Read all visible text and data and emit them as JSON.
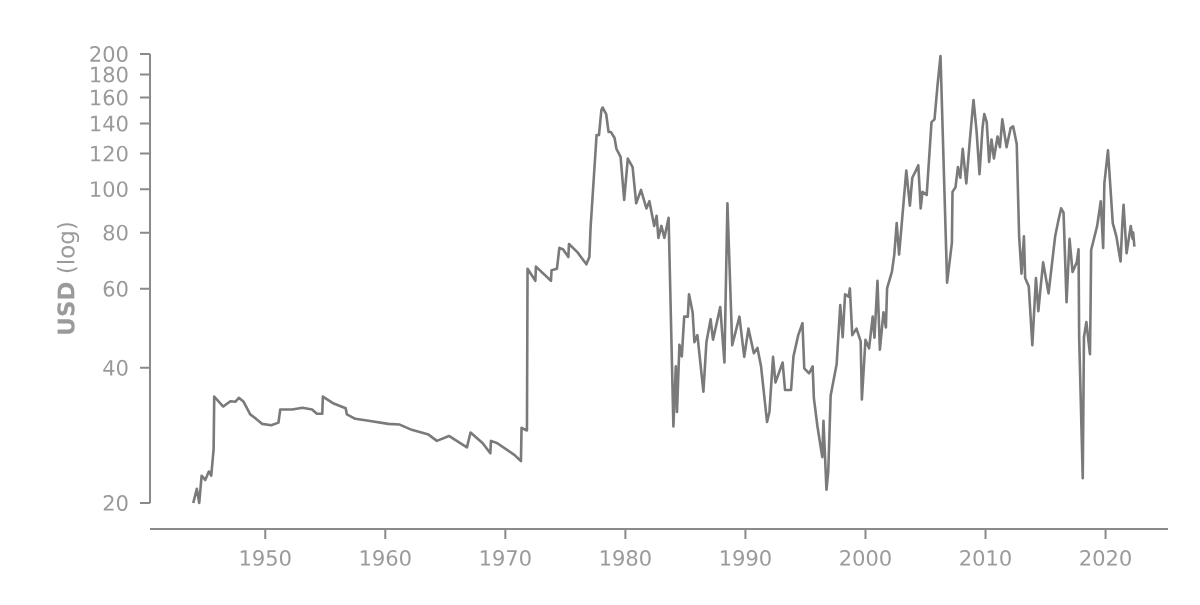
{
  "chart_data": {
    "type": "line",
    "ylabel": "**USD** (log)",
    "log": "y",
    "color": "#7a7a7a",
    "xlim": [
      1940.4,
      2025.2
    ],
    "ylim": [
      20,
      200
    ],
    "xticks": [
      1950,
      1960,
      1970,
      1980,
      1990,
      2000,
      2010,
      2020
    ],
    "yticks": [
      20,
      40,
      60,
      80,
      100,
      120,
      140,
      160,
      180,
      200
    ],
    "x": [
      1944.0,
      1944.3,
      1944.5,
      1944.7,
      1945.0,
      1945.3,
      1945.5,
      1945.7,
      1945.75,
      1946.5,
      1947.1,
      1947.5,
      1947.8,
      1948.2,
      1948.75,
      1949.1,
      1949.75,
      1950.5,
      1951.1,
      1951.25,
      1952.25,
      1953.1,
      1953.9,
      1954.3,
      1954.75,
      1954.8,
      1955.7,
      1956.7,
      1956.8,
      1957.5,
      1958.6,
      1960.25,
      1961.2,
      1962.2,
      1963.6,
      1964.3,
      1965.3,
      1966.8,
      1967.1,
      1968.1,
      1968.75,
      1968.8,
      1969.3,
      1970.75,
      1971.3,
      1971.35,
      1971.8,
      1971.85,
      1972.5,
      1972.55,
      1973.8,
      1973.85,
      1974.3,
      1974.5,
      1974.8,
      1975.25,
      1975.3,
      1976.0,
      1976.75,
      1977.0,
      1977.1,
      1977.6,
      1977.8,
      1978.0,
      1978.1,
      1978.4,
      1978.6,
      1978.8,
      1979.1,
      1979.25,
      1979.6,
      1979.9,
      1980.2,
      1980.6,
      1980.9,
      1981.3,
      1981.75,
      1982.0,
      1982.4,
      1982.6,
      1982.75,
      1983.0,
      1983.25,
      1983.6,
      1984.0,
      1984.2,
      1984.3,
      1984.5,
      1984.7,
      1984.9,
      1985.2,
      1985.3,
      1985.6,
      1985.75,
      1986.0,
      1986.5,
      1986.75,
      1987.1,
      1987.3,
      1987.9,
      1988.25,
      1988.5,
      1988.9,
      1989.5,
      1989.9,
      1990.25,
      1990.7,
      1991.0,
      1991.3,
      1991.8,
      1992.0,
      1992.3,
      1992.5,
      1993.1,
      1993.3,
      1993.8,
      1994.0,
      1994.4,
      1994.75,
      1994.9,
      1995.3,
      1995.6,
      1995.7,
      1996.0,
      1996.4,
      1996.5,
      1996.75,
      1996.9,
      1997.1,
      1997.6,
      1997.9,
      1998.1,
      1998.3,
      1998.6,
      1998.7,
      1998.9,
      1999.25,
      1999.6,
      1999.7,
      2000.0,
      2000.3,
      2000.6,
      2000.75,
      2001.0,
      2001.2,
      2001.5,
      2001.7,
      2001.8,
      2002.2,
      2002.4,
      2002.6,
      2002.8,
      2003.1,
      2003.4,
      2003.7,
      2003.9,
      2004.2,
      2004.4,
      2004.6,
      2004.75,
      2005.1,
      2005.3,
      2005.5,
      2005.75,
      2006.0,
      2006.25,
      2006.8,
      2007.2,
      2007.25,
      2007.5,
      2007.7,
      2007.9,
      2008.1,
      2008.4,
      2008.7,
      2009.0,
      2009.25,
      2009.5,
      2009.75,
      2009.9,
      2010.1,
      2010.3,
      2010.5,
      2010.7,
      2011.0,
      2011.2,
      2011.4,
      2011.75,
      2012.1,
      2012.3,
      2012.6,
      2012.8,
      2013.0,
      2013.2,
      2013.3,
      2013.6,
      2013.9,
      2014.2,
      2014.4,
      2014.6,
      2014.8,
      2015.25,
      2015.6,
      2015.8,
      2016.1,
      2016.3,
      2016.5,
      2016.75,
      2017.0,
      2017.25,
      2017.6,
      2017.75,
      2017.8,
      2018.1,
      2018.2,
      2018.4,
      2018.7,
      2018.75,
      2018.8,
      2019.3,
      2019.6,
      2019.8,
      2019.9,
      2020.2,
      2020.6,
      2020.9,
      2021.25,
      2021.4,
      2021.5,
      2021.75,
      2022.1,
      2022.25,
      2022.3,
      2022.4
    ],
    "values": [
      20,
      21.5,
      20,
      23,
      22.5,
      23.5,
      23,
      26.4,
      34.5,
      32.8,
      33.7,
      33.6,
      34.3,
      33.6,
      31.5,
      31,
      30,
      29.8,
      30.2,
      32.3,
      32.3,
      32.6,
      32.3,
      31.6,
      31.6,
      34.5,
      33.3,
      32.5,
      31.5,
      30.8,
      30.5,
      30,
      29.9,
      29.1,
      28.4,
      27.5,
      28.2,
      26.6,
      28.7,
      27.2,
      25.8,
      27.5,
      27.2,
      25.6,
      24.8,
      29.4,
      29,
      66.5,
      62.5,
      67.2,
      62.5,
      66,
      66.5,
      74,
      73.5,
      70.6,
      75.5,
      72.4,
      68,
      70.6,
      82,
      132,
      132,
      150,
      152,
      147,
      134,
      134,
      130,
      123,
      118,
      94.6,
      117,
      112,
      93,
      99.6,
      90.6,
      94,
      82.8,
      87.2,
      77.9,
      82.8,
      77.9,
      86.3,
      29.6,
      40.3,
      31.9,
      45,
      42.4,
      52,
      52,
      58.3,
      53.2,
      45.6,
      47.3,
      35.4,
      45.6,
      51.3,
      46.2,
      54.6,
      41.1,
      93,
      44.9,
      52,
      42.3,
      48.9,
      43.1,
      44.3,
      40.3,
      30.3,
      31.9,
      42.3,
      37.1,
      41.1,
      35.7,
      35.7,
      42.4,
      47.3,
      50.3,
      39.9,
      38.9,
      40.3,
      34.3,
      29.6,
      25.3,
      30.5,
      21.4,
      23.5,
      34.7,
      40.8,
      55.2,
      46.8,
      58.3,
      57.6,
      60.1,
      47.3,
      48.9,
      45.8,
      34,
      46.2,
      44.2,
      52,
      46.7,
      62.5,
      43.9,
      53.2,
      49.2,
      60.1,
      65.4,
      71.5,
      84,
      71.5,
      88.6,
      110,
      91.9,
      106,
      110,
      113,
      90.6,
      98.6,
      97,
      117,
      141,
      143,
      170,
      198,
      61.9,
      76,
      98.6,
      101,
      112,
      106,
      123,
      103,
      129,
      158,
      135,
      108,
      137,
      147,
      141,
      115,
      129,
      117,
      131,
      124,
      143,
      124,
      137,
      138,
      126,
      78.5,
      64.8,
      78.5,
      63.4,
      60.8,
      44.9,
      63.4,
      53.5,
      60.8,
      68.7,
      58.6,
      70.6,
      78.5,
      85.9,
      90.6,
      88.6,
      56,
      77.5,
      65.4,
      68.7,
      73.5,
      46.8,
      22.7,
      46.8,
      50.6,
      42.9,
      54.6,
      73.2,
      82.8,
      94,
      74,
      103,
      122,
      84,
      78.5,
      69,
      84,
      92.3,
      72,
      82.8,
      77.5,
      80,
      74.5
    ]
  }
}
